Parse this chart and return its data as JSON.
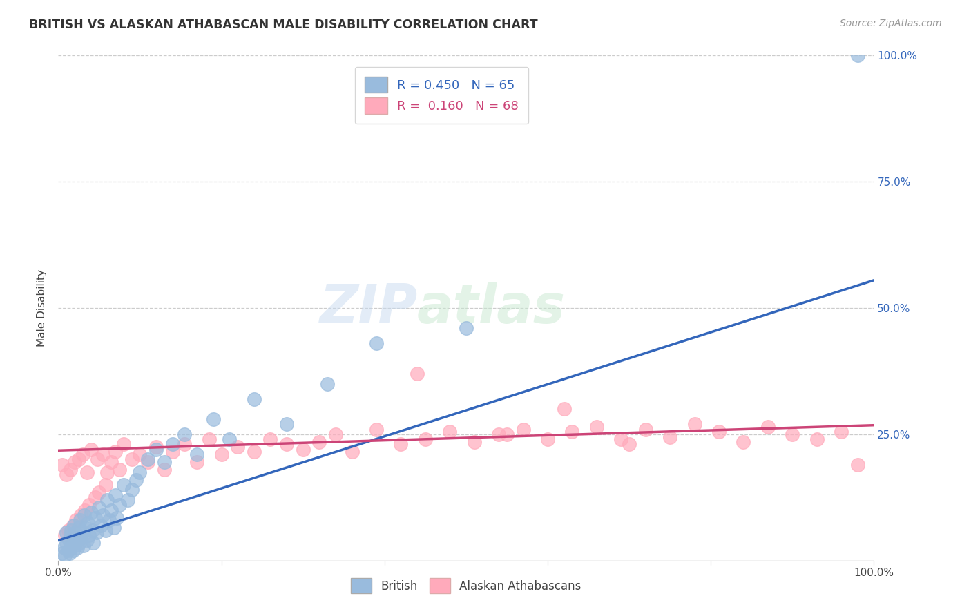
{
  "title": "BRITISH VS ALASKAN ATHABASCAN MALE DISABILITY CORRELATION CHART",
  "source_text": "Source: ZipAtlas.com",
  "ylabel": "Male Disability",
  "xlim": [
    0.0,
    1.0
  ],
  "ylim": [
    0.0,
    1.0
  ],
  "grid_color": "#cccccc",
  "background_color": "#ffffff",
  "watermark_zip": "ZIP",
  "watermark_atlas": "atlas",
  "blue_color": "#99BBDD",
  "pink_color": "#FFAABB",
  "blue_line_color": "#3366BB",
  "pink_line_color": "#CC4477",
  "legend_R_blue": "0.450",
  "legend_N_blue": "65",
  "legend_R_pink": "0.160",
  "legend_N_pink": "68",
  "blue_line_start_x": 0.0,
  "blue_line_start_y": 0.04,
  "blue_line_end_x": 1.0,
  "blue_line_end_y": 0.555,
  "pink_line_start_x": 0.0,
  "pink_line_start_y": 0.218,
  "pink_line_end_x": 1.0,
  "pink_line_end_y": 0.268,
  "british_x": [
    0.005,
    0.007,
    0.008,
    0.01,
    0.01,
    0.012,
    0.013,
    0.014,
    0.015,
    0.015,
    0.016,
    0.017,
    0.018,
    0.018,
    0.019,
    0.02,
    0.021,
    0.022,
    0.023,
    0.025,
    0.026,
    0.027,
    0.028,
    0.03,
    0.031,
    0.032,
    0.033,
    0.035,
    0.036,
    0.038,
    0.04,
    0.042,
    0.043,
    0.045,
    0.047,
    0.05,
    0.052,
    0.055,
    0.058,
    0.06,
    0.062,
    0.065,
    0.068,
    0.07,
    0.072,
    0.075,
    0.08,
    0.085,
    0.09,
    0.095,
    0.1,
    0.11,
    0.12,
    0.13,
    0.14,
    0.155,
    0.17,
    0.19,
    0.21,
    0.24,
    0.28,
    0.33,
    0.39,
    0.5,
    0.98
  ],
  "british_y": [
    0.015,
    0.025,
    0.01,
    0.035,
    0.055,
    0.02,
    0.04,
    0.015,
    0.05,
    0.025,
    0.06,
    0.035,
    0.045,
    0.02,
    0.07,
    0.03,
    0.055,
    0.04,
    0.025,
    0.065,
    0.035,
    0.08,
    0.045,
    0.055,
    0.03,
    0.09,
    0.065,
    0.04,
    0.075,
    0.05,
    0.095,
    0.06,
    0.035,
    0.085,
    0.055,
    0.105,
    0.07,
    0.09,
    0.06,
    0.12,
    0.08,
    0.1,
    0.065,
    0.13,
    0.085,
    0.11,
    0.15,
    0.12,
    0.14,
    0.16,
    0.175,
    0.2,
    0.22,
    0.195,
    0.23,
    0.25,
    0.21,
    0.28,
    0.24,
    0.32,
    0.27,
    0.35,
    0.43,
    0.46,
    1.0
  ],
  "alaskan_x": [
    0.005,
    0.008,
    0.01,
    0.012,
    0.015,
    0.018,
    0.02,
    0.022,
    0.025,
    0.028,
    0.03,
    0.033,
    0.035,
    0.038,
    0.04,
    0.045,
    0.048,
    0.05,
    0.055,
    0.058,
    0.06,
    0.065,
    0.07,
    0.075,
    0.08,
    0.09,
    0.1,
    0.11,
    0.12,
    0.13,
    0.14,
    0.155,
    0.17,
    0.185,
    0.2,
    0.22,
    0.24,
    0.26,
    0.28,
    0.3,
    0.32,
    0.34,
    0.36,
    0.39,
    0.42,
    0.45,
    0.48,
    0.51,
    0.54,
    0.57,
    0.6,
    0.63,
    0.66,
    0.69,
    0.72,
    0.75,
    0.78,
    0.81,
    0.84,
    0.87,
    0.9,
    0.93,
    0.96,
    0.98,
    0.44,
    0.55,
    0.62,
    0.7
  ],
  "alaskan_y": [
    0.19,
    0.05,
    0.17,
    0.06,
    0.18,
    0.07,
    0.195,
    0.08,
    0.2,
    0.09,
    0.21,
    0.1,
    0.175,
    0.11,
    0.22,
    0.125,
    0.2,
    0.135,
    0.21,
    0.15,
    0.175,
    0.195,
    0.215,
    0.18,
    0.23,
    0.2,
    0.21,
    0.195,
    0.225,
    0.18,
    0.215,
    0.23,
    0.195,
    0.24,
    0.21,
    0.225,
    0.215,
    0.24,
    0.23,
    0.22,
    0.235,
    0.25,
    0.215,
    0.26,
    0.23,
    0.24,
    0.255,
    0.235,
    0.25,
    0.26,
    0.24,
    0.255,
    0.265,
    0.24,
    0.26,
    0.245,
    0.27,
    0.255,
    0.235,
    0.265,
    0.25,
    0.24,
    0.255,
    0.19,
    0.37,
    0.25,
    0.3,
    0.23
  ]
}
